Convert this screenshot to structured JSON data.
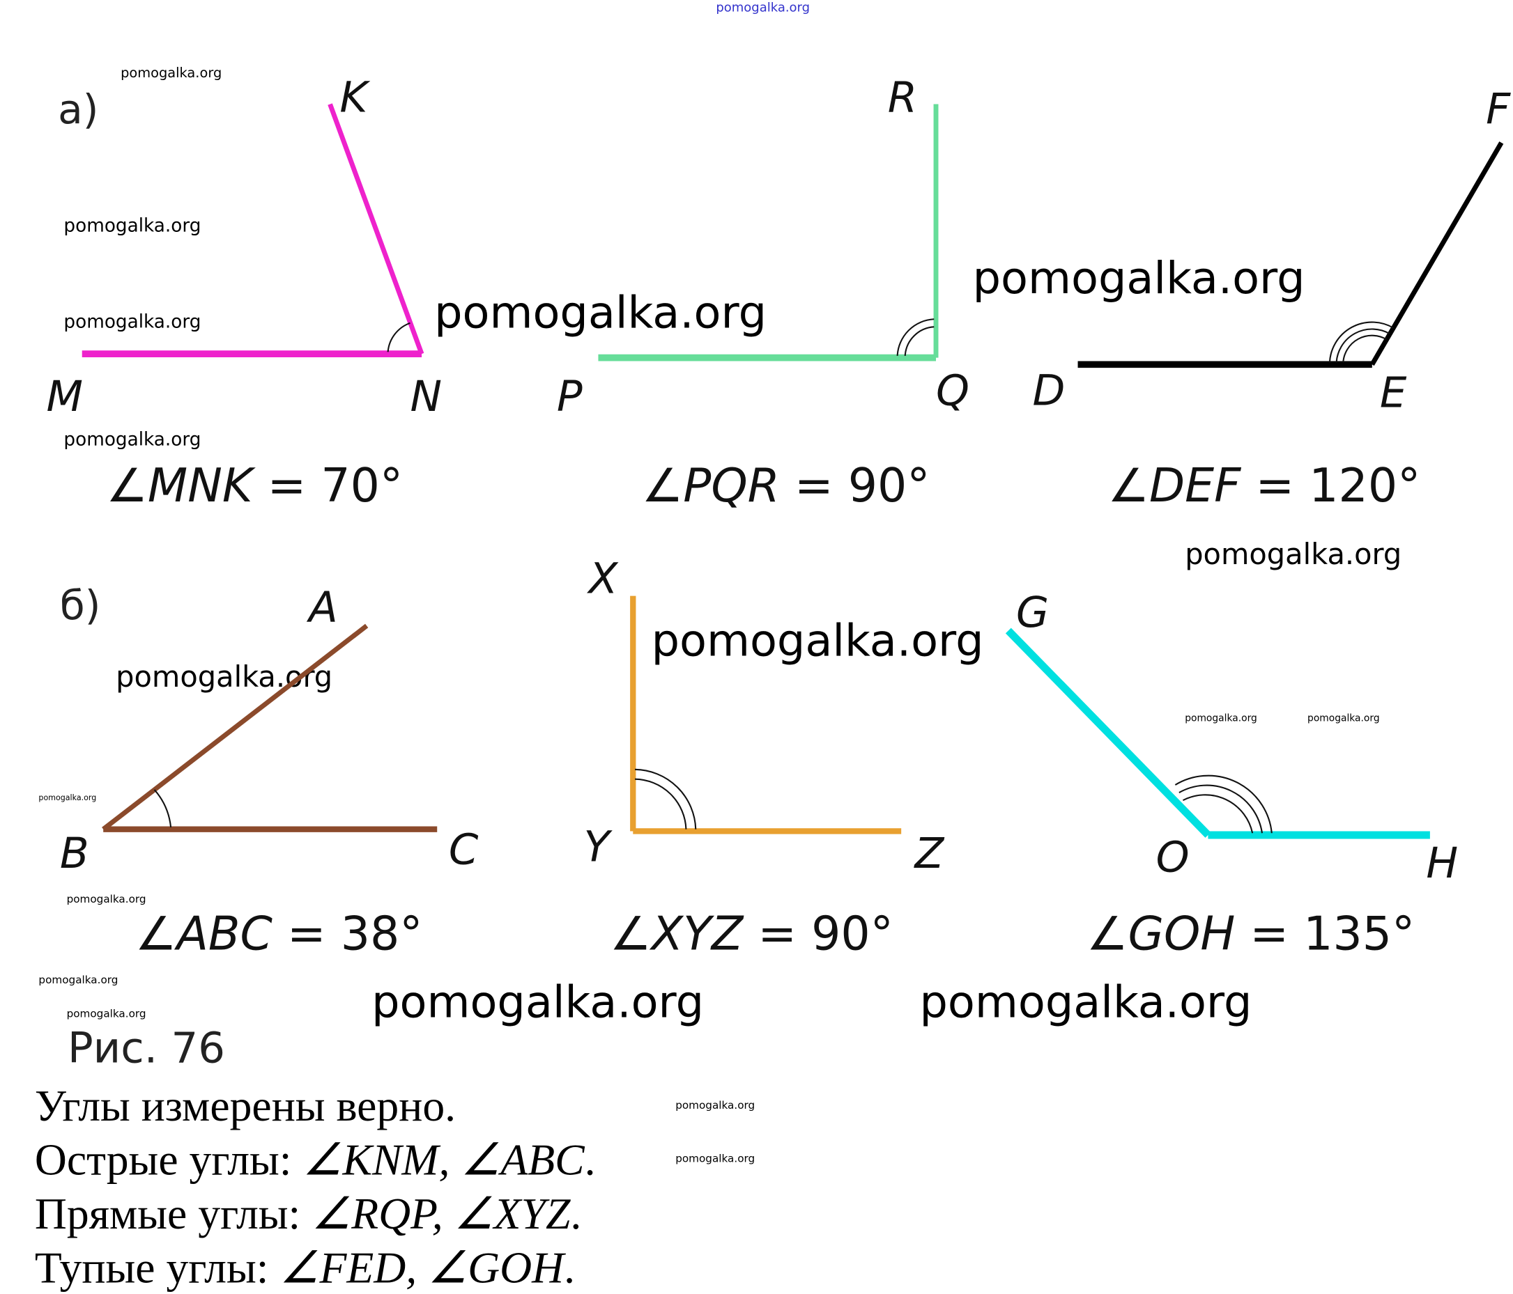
{
  "watermark": "pomogalka.org",
  "colors": {
    "mnk": "#ee22cc",
    "pqr": "#66dd99",
    "def": "#000000",
    "abc": "#8b4a2b",
    "xyz": "#e8a030",
    "goh": "#00e0e0",
    "watermark_top": "#3333cc"
  },
  "part_a": {
    "label": "а)",
    "points": {
      "K": "K",
      "M": "M",
      "N": "N",
      "R": "R",
      "P": "P",
      "Q": "Q",
      "F": "F",
      "D": "D",
      "E": "E"
    },
    "equations": [
      {
        "angle": "∠",
        "name": "MNK",
        "value": " = 70°"
      },
      {
        "angle": "∠",
        "name": "PQR",
        "value": " = 90°"
      },
      {
        "angle": "∠",
        "name": "DEF",
        "value": " = 120°"
      }
    ]
  },
  "part_b": {
    "label": "б)",
    "points": {
      "A": "A",
      "B": "B",
      "C": "C",
      "X": "X",
      "Y": "Y",
      "Z": "Z",
      "G": "G",
      "O": "O",
      "H": "H"
    },
    "equations": [
      {
        "angle": "∠",
        "name": "ABC",
        "value": " = 38°"
      },
      {
        "angle": "∠",
        "name": "XYZ",
        "value": " = 90°"
      },
      {
        "angle": "∠",
        "name": "GOH",
        "value": " = 135°"
      }
    ]
  },
  "caption": "Рис. 76",
  "answer": {
    "line1": "Углы измерены верно.",
    "acute_prefix": "Острые углы: ",
    "acute_angles": "∠KNM, ∠ABC",
    "right_prefix": "Прямые углы: ",
    "right_angles": "∠RQP, ∠XYZ",
    "obtuse_prefix": "Тупые углы: ",
    "obtuse_angles": "∠FED, ∠GOH",
    "period": "."
  }
}
